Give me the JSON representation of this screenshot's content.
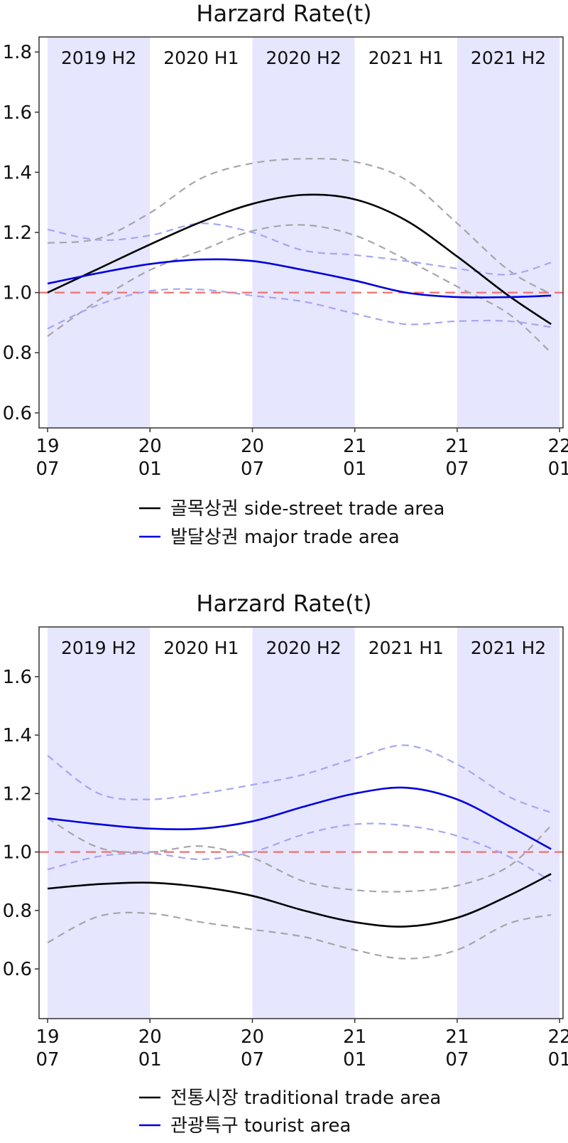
{
  "colors": {
    "band": "#e6e6ff",
    "frame": "#333333",
    "black_series": "#000000",
    "blue_series": "#0000dd",
    "black_ci": "#a6a6a6",
    "blue_ci": "#a6a6f2",
    "reference": "#f07070"
  },
  "chart_data": [
    {
      "type": "line",
      "title": "Harzard Rate(t)",
      "xlabel": "",
      "ylabel": "",
      "x_ticks": [
        {
          "x": 0,
          "top": "19",
          "bottom": "07"
        },
        {
          "x": 6,
          "top": "20",
          "bottom": "01"
        },
        {
          "x": 12,
          "top": "20",
          "bottom": "07"
        },
        {
          "x": 18,
          "top": "21",
          "bottom": "01"
        },
        {
          "x": 24,
          "top": "21",
          "bottom": "07"
        },
        {
          "x": 30,
          "top": "22",
          "bottom": "01"
        }
      ],
      "y_ticks": [
        "0.6",
        "0.8",
        "1.0",
        "1.2",
        "1.4",
        "1.6",
        "1.8"
      ],
      "xlim": [
        -0.5,
        30.2
      ],
      "ylim": [
        0.55,
        1.85
      ],
      "grid": false,
      "legend_position": "bottom",
      "periods": [
        {
          "label": "2019 H2",
          "start": 0,
          "end": 6,
          "shaded": true
        },
        {
          "label": "2020 H1",
          "start": 6,
          "end": 12,
          "shaded": false
        },
        {
          "label": "2020 H2",
          "start": 12,
          "end": 18,
          "shaded": true
        },
        {
          "label": "2021 H1",
          "start": 18,
          "end": 24,
          "shaded": false
        },
        {
          "label": "2021 H2",
          "start": 24,
          "end": 30,
          "shaded": true
        }
      ],
      "reference_line": 1.0,
      "series": [
        {
          "name": "골목상권 side-street trade area",
          "color_key": "black",
          "x": [
            0,
            3,
            6,
            9,
            12,
            15,
            18,
            21,
            24,
            27,
            29.5
          ],
          "values": [
            1.0,
            1.08,
            1.16,
            1.235,
            1.295,
            1.325,
            1.31,
            1.24,
            1.12,
            0.99,
            0.895
          ],
          "lower": [
            0.855,
            0.975,
            1.075,
            1.14,
            1.205,
            1.225,
            1.19,
            1.11,
            1.02,
            0.93,
            0.8
          ],
          "upper": [
            1.165,
            1.18,
            1.265,
            1.38,
            1.43,
            1.445,
            1.435,
            1.375,
            1.23,
            1.075,
            0.995
          ]
        },
        {
          "name": "발달상권 major trade area",
          "color_key": "blue",
          "x": [
            0,
            3,
            6,
            9,
            12,
            15,
            18,
            21,
            24,
            27,
            29.5
          ],
          "values": [
            1.03,
            1.065,
            1.095,
            1.11,
            1.105,
            1.075,
            1.04,
            1.0,
            0.985,
            0.985,
            0.99
          ],
          "lower": [
            0.88,
            0.96,
            1.005,
            1.01,
            0.99,
            0.97,
            0.93,
            0.895,
            0.905,
            0.905,
            0.885
          ],
          "upper": [
            1.21,
            1.175,
            1.19,
            1.23,
            1.2,
            1.14,
            1.125,
            1.105,
            1.08,
            1.06,
            1.1
          ]
        }
      ]
    },
    {
      "type": "line",
      "title": "Harzard Rate(t)",
      "xlabel": "",
      "ylabel": "",
      "x_ticks": [
        {
          "x": 0,
          "top": "19",
          "bottom": "07"
        },
        {
          "x": 6,
          "top": "20",
          "bottom": "01"
        },
        {
          "x": 12,
          "top": "20",
          "bottom": "07"
        },
        {
          "x": 18,
          "top": "21",
          "bottom": "01"
        },
        {
          "x": 24,
          "top": "21",
          "bottom": "07"
        },
        {
          "x": 30,
          "top": "22",
          "bottom": "01"
        }
      ],
      "y_ticks": [
        "0.6",
        "0.8",
        "1.0",
        "1.2",
        "1.4",
        "1.6"
      ],
      "xlim": [
        -0.5,
        30.2
      ],
      "ylim": [
        0.43,
        1.77
      ],
      "grid": false,
      "legend_position": "bottom",
      "periods": [
        {
          "label": "2019 H2",
          "start": 0,
          "end": 6,
          "shaded": true
        },
        {
          "label": "2020 H1",
          "start": 6,
          "end": 12,
          "shaded": false
        },
        {
          "label": "2020 H2",
          "start": 12,
          "end": 18,
          "shaded": true
        },
        {
          "label": "2021 H1",
          "start": 18,
          "end": 24,
          "shaded": false
        },
        {
          "label": "2021 H2",
          "start": 24,
          "end": 30,
          "shaded": true
        }
      ],
      "reference_line": 1.0,
      "series": [
        {
          "name": "전통시장 traditional trade area",
          "color_key": "black",
          "x": [
            0,
            3,
            6,
            9,
            12,
            15,
            18,
            21,
            24,
            27,
            29.5
          ],
          "values": [
            0.875,
            0.89,
            0.895,
            0.88,
            0.85,
            0.8,
            0.76,
            0.745,
            0.775,
            0.85,
            0.925
          ],
          "lower": [
            0.69,
            0.78,
            0.79,
            0.76,
            0.735,
            0.71,
            0.665,
            0.635,
            0.665,
            0.755,
            0.785
          ],
          "upper": [
            1.115,
            1.015,
            1.0,
            1.02,
            0.98,
            0.9,
            0.87,
            0.865,
            0.885,
            0.95,
            1.09
          ]
        },
        {
          "name": "관광특구 tourist area",
          "color_key": "blue",
          "x": [
            0,
            3,
            6,
            9,
            12,
            15,
            18,
            21,
            24,
            27,
            29.5
          ],
          "values": [
            1.115,
            1.095,
            1.08,
            1.08,
            1.105,
            1.155,
            1.2,
            1.22,
            1.18,
            1.09,
            1.01
          ],
          "lower": [
            0.94,
            0.985,
            0.995,
            0.975,
            1.0,
            1.06,
            1.095,
            1.09,
            1.055,
            0.985,
            0.9
          ],
          "upper": [
            1.33,
            1.2,
            1.18,
            1.2,
            1.23,
            1.265,
            1.32,
            1.365,
            1.3,
            1.19,
            1.135
          ]
        }
      ]
    }
  ]
}
